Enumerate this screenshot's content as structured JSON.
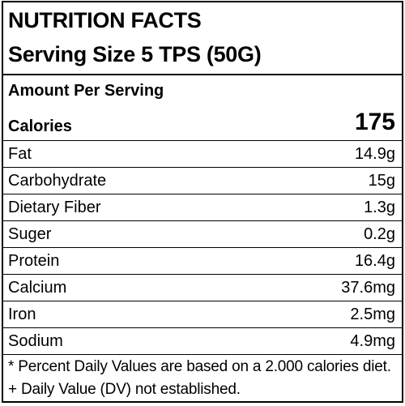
{
  "label": {
    "title": "NUTRITION FACTS",
    "serving_size": "Serving Size 5 TPS (50G)",
    "amount_per_serving": "Amount Per Serving",
    "calories": {
      "label": "Calories",
      "value": "175"
    },
    "nutrients": [
      {
        "name": "Fat",
        "value": "14.9g"
      },
      {
        "name": "Carbohydrate",
        "value": "15g"
      },
      {
        "name": "Dietary Fiber",
        "value": "1.3g"
      },
      {
        "name": "Suger",
        "value": "0.2g"
      },
      {
        "name": "Protein",
        "value": "16.4g"
      },
      {
        "name": "Calcium",
        "value": "37.6mg"
      },
      {
        "name": "Iron",
        "value": "2.5mg"
      },
      {
        "name": "Sodium",
        "value": "4.9mg"
      }
    ],
    "footnotes": [
      "* Percent Daily Values are based on a 2.000 calories diet.",
      "+ Daily Value (DV) not established."
    ]
  }
}
